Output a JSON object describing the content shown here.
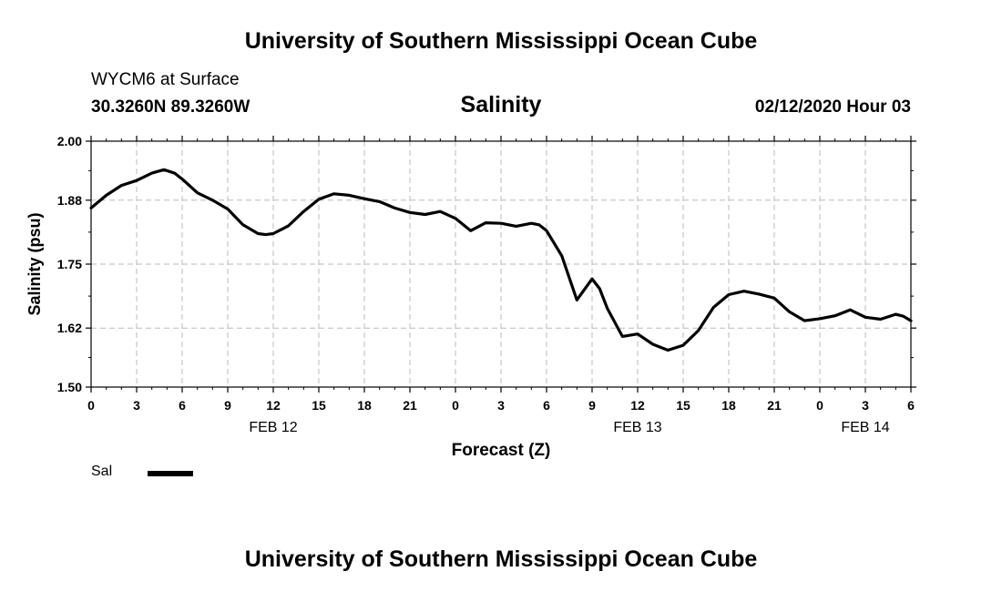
{
  "header": {
    "top_title": "University of Southern Mississippi Ocean Cube",
    "station": "WYCM6 at Surface",
    "coords": "30.3260N 89.3260W",
    "datetime": "02/12/2020 Hour 03",
    "bottom_title": "University of Southern Mississippi Ocean Cube"
  },
  "chart_data": {
    "type": "line",
    "title": "Salinity",
    "xlabel": "Forecast (Z)",
    "ylabel": "Salinity (psu)",
    "ylim": [
      1.5,
      2.0
    ],
    "xlim": [
      0,
      54
    ],
    "grid": true,
    "y_ticks": [
      "1.50",
      "1.62",
      "1.75",
      "1.88",
      "2.00"
    ],
    "x_ticks": [
      "0",
      "3",
      "6",
      "9",
      "12",
      "15",
      "18",
      "21",
      "0",
      "3",
      "6",
      "9",
      "12",
      "15",
      "18",
      "21",
      "0",
      "3",
      "6"
    ],
    "date_labels": [
      {
        "text": "FEB 12",
        "hour": 12
      },
      {
        "text": "FEB 13",
        "hour": 36
      },
      {
        "text": "FEB 14",
        "hour": 51
      }
    ],
    "legend_position": "bottom-left",
    "series": [
      {
        "name": "Sal",
        "color": "#000000",
        "x": [
          0,
          1,
          2,
          3,
          4,
          4.8,
          5.5,
          6,
          7,
          8,
          9,
          10,
          11,
          11.5,
          12,
          13,
          14,
          15,
          16,
          17,
          18,
          19,
          20,
          21,
          22,
          23,
          24,
          25,
          26,
          27,
          28,
          29,
          29.5,
          30,
          31,
          32,
          33,
          33.5,
          34,
          35,
          36,
          37,
          38,
          39,
          40,
          41,
          42,
          43,
          44,
          45,
          46,
          47,
          48,
          49,
          50,
          51,
          52,
          53,
          53.5,
          54
        ],
        "y": [
          1.864,
          1.89,
          1.91,
          1.92,
          1.935,
          1.942,
          1.935,
          1.923,
          1.895,
          1.88,
          1.862,
          1.83,
          1.812,
          1.81,
          1.812,
          1.828,
          1.857,
          1.882,
          1.893,
          1.89,
          1.883,
          1.877,
          1.864,
          1.855,
          1.851,
          1.857,
          1.843,
          1.818,
          1.834,
          1.833,
          1.827,
          1.833,
          1.83,
          1.818,
          1.767,
          1.677,
          1.72,
          1.7,
          1.66,
          1.603,
          1.608,
          1.587,
          1.575,
          1.585,
          1.615,
          1.662,
          1.688,
          1.695,
          1.689,
          1.681,
          1.653,
          1.635,
          1.639,
          1.645,
          1.657,
          1.642,
          1.638,
          1.648,
          1.644,
          1.635
        ]
      }
    ]
  }
}
